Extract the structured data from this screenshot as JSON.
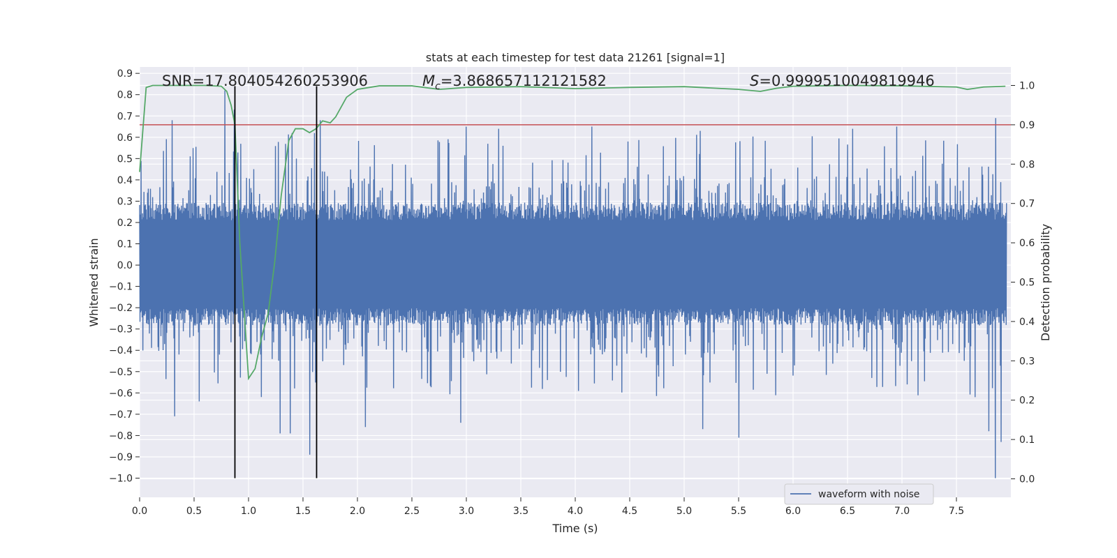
{
  "chart_data": {
    "type": "line",
    "title": "stats at each timestep for test data 21261 [signal=1]",
    "xlabel": "Time (s)",
    "ylabel": "Whitened strain",
    "y2label": "Detection probability",
    "xlim": [
      0.0,
      8.0
    ],
    "ylim": [
      -1.09,
      0.93
    ],
    "y2lim": [
      -0.047,
      1.047
    ],
    "xticks": [
      "0.0",
      "0.5",
      "1.0",
      "1.5",
      "2.0",
      "2.5",
      "3.0",
      "3.5",
      "4.0",
      "4.5",
      "5.0",
      "5.5",
      "6.0",
      "6.5",
      "7.0",
      "7.5"
    ],
    "yticks": [
      "0.9",
      "0.8",
      "0.7",
      "0.6",
      "0.5",
      "0.4",
      "0.3",
      "0.2",
      "0.1",
      "0.0",
      "−0.1",
      "−0.2",
      "−0.3",
      "−0.4",
      "−0.5",
      "−0.6",
      "−0.7",
      "−0.8",
      "−0.9",
      "−1.0"
    ],
    "y2ticks": [
      "1.0",
      "0.9",
      "0.8",
      "0.7",
      "0.6",
      "0.5",
      "0.4",
      "0.3",
      "0.2",
      "0.1",
      "0.0"
    ],
    "annotations": {
      "snr": "SNR=17.804054260253906",
      "mc_symbol": "M",
      "mc_sub": "c",
      "mc_value": "=3.868657112121582",
      "s_symbol": "S",
      "s_value": "=0.9999510049819946"
    },
    "threshold": {
      "y2": 0.9,
      "color": "#c44e52"
    },
    "vlines": [
      0.875,
      1.625
    ],
    "legend": {
      "label": "waveform with noise",
      "placement": "lower-right"
    },
    "grid": true,
    "series": [
      {
        "name": "waveform with noise",
        "color": "#4c72b0",
        "axis": "left",
        "typical_amplitude": [
          -0.27,
          0.28
        ],
        "peaks": [
          {
            "x": 0.78,
            "y": 0.82
          },
          {
            "x": 0.87,
            "y": 0.73
          },
          {
            "x": 0.3,
            "y": 0.68
          },
          {
            "x": 1.66,
            "y": 0.68
          },
          {
            "x": 7.86,
            "y": 0.69
          },
          {
            "x": 1.4,
            "y": 0.62
          },
          {
            "x": 3.0,
            "y": 0.65
          },
          {
            "x": 3.3,
            "y": 0.64
          },
          {
            "x": 4.15,
            "y": 0.65
          },
          {
            "x": 5.15,
            "y": 0.63
          },
          {
            "x": 6.55,
            "y": 0.64
          },
          {
            "x": 6.95,
            "y": 0.65
          },
          {
            "x": 0.32,
            "y": -0.71
          },
          {
            "x": 1.29,
            "y": -0.79
          },
          {
            "x": 1.38,
            "y": -0.79
          },
          {
            "x": 1.56,
            "y": -0.89
          },
          {
            "x": 5.5,
            "y": -0.81
          },
          {
            "x": 5.17,
            "y": -0.77
          },
          {
            "x": 2.07,
            "y": -0.76
          },
          {
            "x": 2.95,
            "y": -0.74
          },
          {
            "x": 7.8,
            "y": -0.78
          },
          {
            "x": 7.86,
            "y": -1.0
          },
          {
            "x": 7.91,
            "y": -0.83
          },
          {
            "x": 0.55,
            "y": -0.64
          }
        ]
      },
      {
        "name": "",
        "color": "#55a868",
        "axis": "right",
        "x": [
          0.0,
          0.06,
          0.12,
          0.25,
          0.4,
          0.6,
          0.75,
          0.8,
          0.84,
          0.875,
          0.92,
          1.0,
          1.06,
          1.12,
          1.18,
          1.24,
          1.3,
          1.37,
          1.43,
          1.5,
          1.56,
          1.62,
          1.68,
          1.75,
          1.8,
          1.9,
          2.0,
          2.2,
          2.5,
          2.75,
          3.0,
          3.5,
          4.0,
          4.5,
          5.0,
          5.5,
          5.7,
          5.85,
          6.0,
          6.5,
          7.0,
          7.5,
          7.6,
          7.75,
          7.95
        ],
        "y": [
          0.78,
          0.995,
          1.0,
          1.0,
          1.0,
          1.0,
          0.998,
          0.985,
          0.95,
          0.9,
          0.6,
          0.255,
          0.28,
          0.36,
          0.42,
          0.55,
          0.72,
          0.86,
          0.89,
          0.89,
          0.88,
          0.89,
          0.91,
          0.905,
          0.92,
          0.97,
          0.99,
          0.999,
          0.999,
          0.99,
          0.995,
          0.997,
          0.992,
          0.995,
          0.997,
          0.99,
          0.985,
          0.993,
          0.998,
          1.0,
          0.999,
          0.996,
          0.99,
          0.996,
          0.998
        ]
      }
    ]
  }
}
